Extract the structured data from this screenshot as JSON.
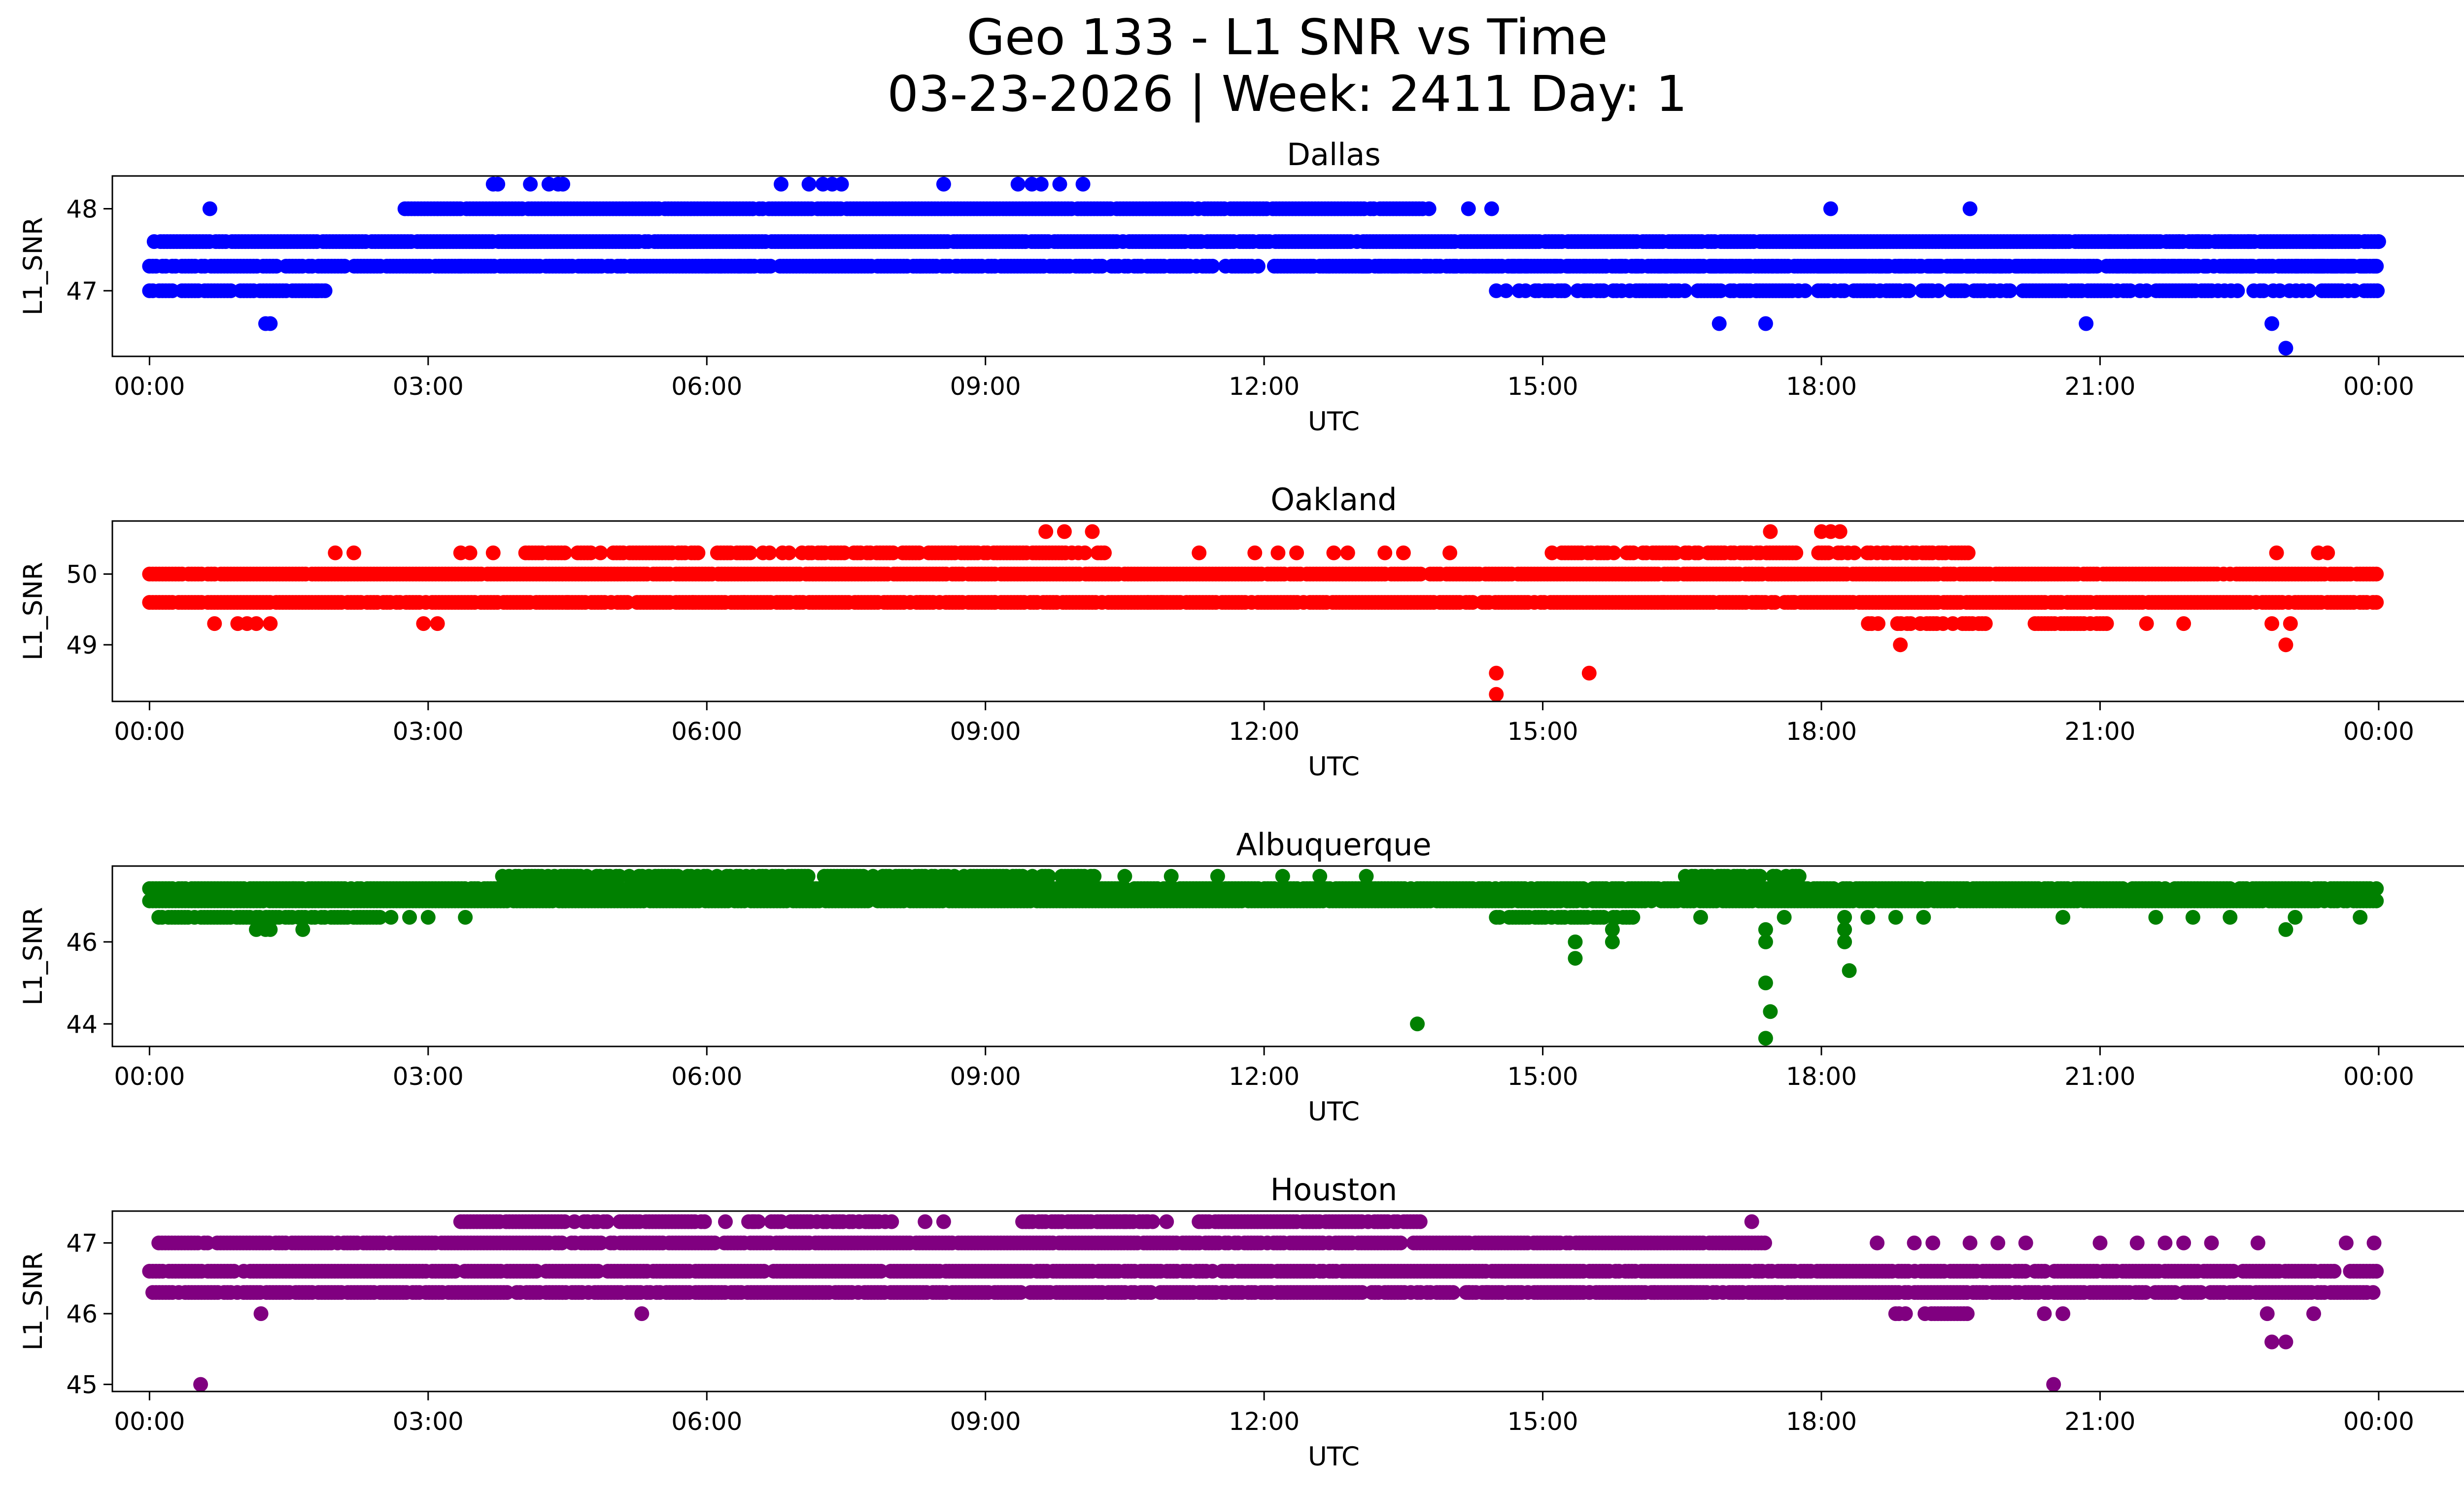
{
  "figure": {
    "title_line1": "Geo 133 - L1 SNR vs Time",
    "title_line2": "03-23-2026 | Week: 2411 Day: 1"
  },
  "chart_data": [
    {
      "type": "scatter",
      "title": "Dallas",
      "xlabel": "UTC",
      "ylabel": "L1_SNR",
      "color": "#0000ff",
      "xlim": [
        -0.4,
        25.9
      ],
      "ylim": [
        46.2,
        48.4
      ],
      "xticks": [
        0,
        3,
        6,
        9,
        12,
        15,
        18,
        21,
        24
      ],
      "xticklabels": [
        "00:00",
        "03:00",
        "06:00",
        "09:00",
        "12:00",
        "15:00",
        "18:00",
        "21:00",
        "00:00"
      ],
      "yticks": [
        47,
        48
      ],
      "bands": [
        {
          "y": 47.6,
          "start": 0.05,
          "end": 24.0,
          "density": 0.95
        },
        {
          "y": 47.3,
          "start": 0.0,
          "end": 24.0,
          "density": 0.9
        },
        {
          "y": 47.0,
          "start": 0.0,
          "end": 1.9,
          "density": 0.85
        },
        {
          "y": 48.0,
          "start": 2.75,
          "end": 13.8,
          "density": 0.95
        },
        {
          "y": 47.0,
          "start": 14.5,
          "end": 24.0,
          "density": 0.6
        },
        {
          "y": 47.3,
          "start": 13.0,
          "end": 24.0,
          "density": 0.3
        }
      ],
      "points": [
        [
          0.65,
          48.0
        ],
        [
          1.25,
          46.6
        ],
        [
          1.3,
          46.6
        ],
        [
          1.8,
          47.0
        ],
        [
          3.35,
          47.3
        ],
        [
          3.7,
          48.3
        ],
        [
          3.75,
          48.3
        ],
        [
          4.1,
          48.3
        ],
        [
          4.3,
          48.3
        ],
        [
          4.4,
          48.3
        ],
        [
          4.45,
          48.3
        ],
        [
          6.0,
          47.3
        ],
        [
          6.15,
          47.3
        ],
        [
          6.35,
          47.3
        ],
        [
          6.45,
          47.3
        ],
        [
          6.8,
          48.3
        ],
        [
          7.1,
          48.3
        ],
        [
          7.25,
          48.3
        ],
        [
          7.35,
          48.3
        ],
        [
          7.45,
          48.3
        ],
        [
          8.3,
          47.3
        ],
        [
          8.55,
          48.3
        ],
        [
          8.7,
          47.3
        ],
        [
          9.35,
          48.3
        ],
        [
          9.5,
          48.3
        ],
        [
          9.6,
          48.3
        ],
        [
          9.8,
          48.3
        ],
        [
          10.05,
          48.3
        ],
        [
          12.5,
          47.3
        ],
        [
          12.7,
          47.3
        ],
        [
          13.05,
          47.3
        ],
        [
          14.2,
          48.0
        ],
        [
          14.45,
          48.0
        ],
        [
          15.45,
          47.0
        ],
        [
          15.85,
          47.0
        ],
        [
          16.15,
          47.0
        ],
        [
          16.9,
          46.6
        ],
        [
          17.4,
          46.6
        ],
        [
          17.3,
          47.0
        ],
        [
          17.75,
          47.0
        ],
        [
          18.1,
          48.0
        ],
        [
          19.6,
          48.0
        ],
        [
          20.0,
          47.6
        ],
        [
          20.5,
          47.6
        ],
        [
          20.85,
          46.6
        ],
        [
          21.1,
          47.6
        ],
        [
          21.3,
          47.6
        ],
        [
          21.85,
          47.6
        ],
        [
          22.05,
          47.6
        ],
        [
          22.4,
          47.6
        ],
        [
          22.6,
          47.6
        ],
        [
          22.85,
          46.6
        ],
        [
          23.0,
          46.3
        ],
        [
          23.3,
          47.6
        ],
        [
          23.5,
          47.6
        ],
        [
          23.85,
          47.6
        ],
        [
          24.0,
          47.6
        ]
      ]
    },
    {
      "type": "scatter",
      "title": "Oakland",
      "xlabel": "UTC",
      "ylabel": "L1_SNR",
      "color": "#ff0000",
      "xlim": [
        -0.4,
        25.9
      ],
      "ylim": [
        48.2,
        50.75
      ],
      "xticks": [
        0,
        3,
        6,
        9,
        12,
        15,
        18,
        21,
        24
      ],
      "xticklabels": [
        "00:00",
        "03:00",
        "06:00",
        "09:00",
        "12:00",
        "15:00",
        "18:00",
        "21:00",
        "00:00"
      ],
      "yticks": [
        49,
        50
      ],
      "bands": [
        {
          "y": 50.0,
          "start": 0.0,
          "end": 24.0,
          "density": 0.95
        },
        {
          "y": 49.6,
          "start": 0.0,
          "end": 24.0,
          "density": 0.9
        },
        {
          "y": 50.3,
          "start": 4.05,
          "end": 10.3,
          "density": 0.75
        },
        {
          "y": 50.3,
          "start": 15.1,
          "end": 19.6,
          "density": 0.75
        },
        {
          "y": 49.3,
          "start": 18.4,
          "end": 19.9,
          "density": 0.6
        },
        {
          "y": 49.3,
          "start": 20.3,
          "end": 21.1,
          "density": 0.7
        }
      ],
      "points": [
        [
          0.7,
          49.3
        ],
        [
          0.95,
          49.3
        ],
        [
          1.05,
          49.3
        ],
        [
          1.15,
          49.3
        ],
        [
          1.3,
          49.3
        ],
        [
          2.0,
          50.3
        ],
        [
          2.2,
          50.3
        ],
        [
          2.95,
          49.3
        ],
        [
          3.1,
          49.3
        ],
        [
          3.35,
          50.3
        ],
        [
          3.45,
          50.3
        ],
        [
          3.7,
          50.3
        ],
        [
          4.5,
          49.6
        ],
        [
          5.85,
          49.6
        ],
        [
          6.4,
          49.6
        ],
        [
          8.3,
          49.6
        ],
        [
          9.1,
          49.6
        ],
        [
          9.65,
          50.6
        ],
        [
          9.85,
          50.6
        ],
        [
          10.15,
          50.6
        ],
        [
          10.75,
          49.6
        ],
        [
          10.9,
          49.6
        ],
        [
          11.3,
          50.3
        ],
        [
          11.9,
          50.3
        ],
        [
          12.15,
          50.3
        ],
        [
          12.35,
          50.3
        ],
        [
          12.75,
          50.3
        ],
        [
          12.9,
          50.3
        ],
        [
          13.3,
          50.3
        ],
        [
          13.5,
          50.3
        ],
        [
          14.0,
          50.3
        ],
        [
          14.5,
          48.6
        ],
        [
          14.5,
          48.3
        ],
        [
          15.5,
          48.6
        ],
        [
          16.3,
          49.6
        ],
        [
          17.3,
          49.6
        ],
        [
          17.45,
          50.6
        ],
        [
          17.7,
          49.6
        ],
        [
          18.0,
          50.6
        ],
        [
          18.1,
          50.6
        ],
        [
          18.2,
          50.6
        ],
        [
          18.85,
          49.0
        ],
        [
          21.5,
          49.3
        ],
        [
          21.9,
          49.3
        ],
        [
          22.85,
          49.3
        ],
        [
          22.9,
          50.3
        ],
        [
          23.0,
          49.0
        ],
        [
          23.05,
          49.3
        ],
        [
          23.35,
          50.3
        ],
        [
          23.45,
          50.3
        ]
      ]
    },
    {
      "type": "scatter",
      "title": "Albuquerque",
      "xlabel": "UTC",
      "ylabel": "L1_SNR",
      "color": "#008000",
      "xlim": [
        -0.4,
        25.9
      ],
      "ylim": [
        43.45,
        47.85
      ],
      "xticks": [
        0,
        3,
        6,
        9,
        12,
        15,
        18,
        21,
        24
      ],
      "xticklabels": [
        "00:00",
        "03:00",
        "06:00",
        "09:00",
        "12:00",
        "15:00",
        "18:00",
        "21:00",
        "00:00"
      ],
      "yticks": [
        44,
        46
      ],
      "bands": [
        {
          "y": 47.3,
          "start": 0.0,
          "end": 24.0,
          "density": 0.9
        },
        {
          "y": 47.0,
          "start": 0.0,
          "end": 24.0,
          "density": 0.95
        },
        {
          "y": 46.6,
          "start": 0.1,
          "end": 2.5,
          "density": 0.85
        },
        {
          "y": 47.6,
          "start": 3.8,
          "end": 10.2,
          "density": 0.7
        },
        {
          "y": 46.6,
          "start": 14.5,
          "end": 16.0,
          "density": 0.8
        },
        {
          "y": 47.6,
          "start": 16.5,
          "end": 17.8,
          "density": 0.6
        }
      ],
      "points": [
        [
          1.15,
          46.3
        ],
        [
          1.25,
          46.3
        ],
        [
          1.3,
          46.3
        ],
        [
          1.65,
          46.3
        ],
        [
          1.55,
          47.3
        ],
        [
          2.6,
          46.6
        ],
        [
          2.8,
          46.6
        ],
        [
          3.0,
          46.6
        ],
        [
          3.4,
          46.6
        ],
        [
          10.0,
          47.6
        ],
        [
          10.5,
          47.6
        ],
        [
          11.0,
          47.6
        ],
        [
          11.5,
          47.6
        ],
        [
          12.2,
          47.6
        ],
        [
          12.6,
          47.6
        ],
        [
          13.1,
          47.6
        ],
        [
          13.65,
          44.0
        ],
        [
          15.35,
          46.0
        ],
        [
          15.35,
          45.6
        ],
        [
          15.75,
          46.0
        ],
        [
          15.75,
          46.3
        ],
        [
          16.7,
          46.6
        ],
        [
          17.4,
          46.3
        ],
        [
          17.4,
          46.0
        ],
        [
          17.4,
          45.0
        ],
        [
          17.45,
          44.3
        ],
        [
          17.4,
          43.65
        ],
        [
          17.6,
          46.6
        ],
        [
          18.25,
          46.6
        ],
        [
          18.25,
          46.3
        ],
        [
          18.25,
          46.0
        ],
        [
          18.3,
          45.3
        ],
        [
          18.5,
          46.6
        ],
        [
          18.8,
          46.6
        ],
        [
          19.1,
          46.6
        ],
        [
          20.6,
          46.6
        ],
        [
          21.6,
          46.6
        ],
        [
          22.0,
          46.6
        ],
        [
          22.4,
          46.6
        ],
        [
          23.0,
          46.3
        ],
        [
          23.1,
          46.6
        ],
        [
          23.8,
          46.6
        ]
      ]
    },
    {
      "type": "scatter",
      "title": "Houston",
      "xlabel": "UTC",
      "ylabel": "L1_SNR",
      "color": "#800080",
      "xlim": [
        -0.4,
        25.9
      ],
      "ylim": [
        44.9,
        47.45
      ],
      "xticks": [
        0,
        3,
        6,
        9,
        12,
        15,
        18,
        21,
        24
      ],
      "xticklabels": [
        "00:00",
        "03:00",
        "06:00",
        "09:00",
        "12:00",
        "15:00",
        "18:00",
        "21:00",
        "00:00"
      ],
      "yticks": [
        45,
        46,
        47
      ],
      "bands": [
        {
          "y": 46.6,
          "start": 0.0,
          "end": 24.0,
          "density": 0.9
        },
        {
          "y": 46.3,
          "start": 0.0,
          "end": 24.0,
          "density": 0.85
        },
        {
          "y": 47.0,
          "start": 0.1,
          "end": 17.4,
          "density": 0.9
        },
        {
          "y": 47.3,
          "start": 3.35,
          "end": 6.0,
          "density": 0.85
        },
        {
          "y": 47.3,
          "start": 6.45,
          "end": 8.0,
          "density": 0.8
        },
        {
          "y": 47.3,
          "start": 9.4,
          "end": 10.8,
          "density": 0.8
        },
        {
          "y": 47.3,
          "start": 11.3,
          "end": 13.7,
          "density": 0.85
        },
        {
          "y": 46.0,
          "start": 18.8,
          "end": 19.6,
          "density": 0.7
        }
      ],
      "points": [
        [
          0.55,
          45.0
        ],
        [
          1.2,
          46.0
        ],
        [
          5.3,
          46.0
        ],
        [
          6.05,
          46.3
        ],
        [
          6.2,
          47.3
        ],
        [
          6.5,
          47.3
        ],
        [
          8.35,
          47.3
        ],
        [
          8.55,
          47.3
        ],
        [
          10.5,
          47.3
        ],
        [
          10.75,
          47.3
        ],
        [
          10.95,
          47.3
        ],
        [
          12.85,
          46.6
        ],
        [
          14.2,
          46.3
        ],
        [
          14.4,
          46.3
        ],
        [
          15.3,
          46.3
        ],
        [
          15.5,
          46.3
        ],
        [
          16.2,
          46.3
        ],
        [
          16.6,
          46.3
        ],
        [
          17.25,
          47.3
        ],
        [
          17.5,
          46.3
        ],
        [
          18.6,
          47.0
        ],
        [
          19.0,
          47.0
        ],
        [
          19.2,
          47.0
        ],
        [
          19.6,
          47.0
        ],
        [
          19.9,
          47.0
        ],
        [
          20.2,
          47.0
        ],
        [
          20.5,
          45.0
        ],
        [
          20.4,
          46.0
        ],
        [
          20.6,
          46.0
        ],
        [
          21.0,
          47.0
        ],
        [
          21.4,
          47.0
        ],
        [
          21.7,
          47.0
        ],
        [
          21.9,
          47.0
        ],
        [
          22.2,
          47.0
        ],
        [
          22.7,
          47.0
        ],
        [
          22.8,
          46.0
        ],
        [
          22.85,
          45.6
        ],
        [
          23.0,
          45.6
        ],
        [
          23.3,
          46.0
        ],
        [
          23.65,
          47.0
        ],
        [
          23.95,
          47.0
        ]
      ]
    }
  ]
}
